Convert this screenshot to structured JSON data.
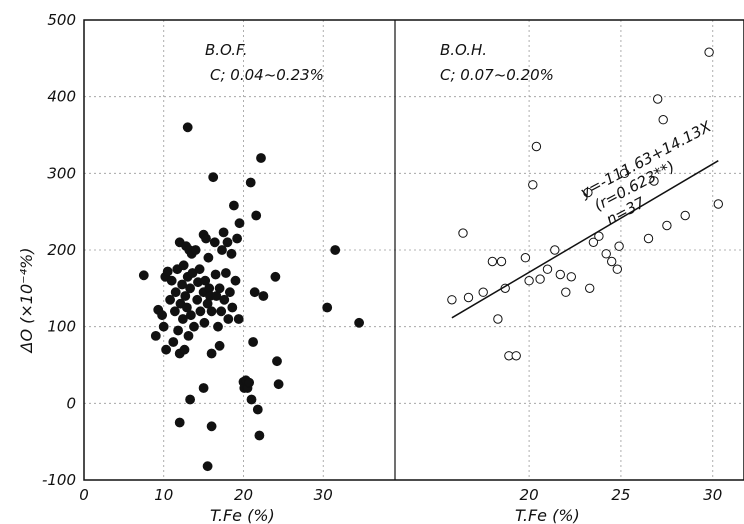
{
  "chart_data": {
    "type": "scatter",
    "ylabel": "ΔO (×10⁻⁴%)",
    "ylim": [
      -100,
      500
    ],
    "yticks": [
      "500",
      "400",
      "300",
      "200",
      "100",
      "0",
      "-100"
    ],
    "grid": true,
    "panels": [
      {
        "name": "B.O.F.",
        "condition": "C; 0.04~0.23%",
        "xlabel": "T.Fe (%)",
        "xlim": [
          0,
          39
        ],
        "xticks": [
          "0",
          "10",
          "20",
          "30"
        ],
        "marker": "filled",
        "points": [
          [
            7.5,
            167
          ],
          [
            9,
            88
          ],
          [
            9.3,
            122
          ],
          [
            9.8,
            115
          ],
          [
            10,
            100
          ],
          [
            10.2,
            165
          ],
          [
            10.3,
            70
          ],
          [
            10.5,
            172
          ],
          [
            10.8,
            135
          ],
          [
            11,
            160
          ],
          [
            11.2,
            80
          ],
          [
            11.4,
            120
          ],
          [
            11.5,
            145
          ],
          [
            11.7,
            175
          ],
          [
            11.8,
            95
          ],
          [
            12,
            210
          ],
          [
            12,
            65
          ],
          [
            12.1,
            130
          ],
          [
            12.3,
            155
          ],
          [
            12.4,
            110
          ],
          [
            12.5,
            180
          ],
          [
            12.6,
            70
          ],
          [
            12.7,
            140
          ],
          [
            12.8,
            205
          ],
          [
            12.9,
            125
          ],
          [
            13,
            360
          ],
          [
            13,
            165
          ],
          [
            13.1,
            88
          ],
          [
            13.2,
            200
          ],
          [
            13.3,
            150
          ],
          [
            13.4,
            115
          ],
          [
            13.5,
            195
          ],
          [
            13.6,
            170
          ],
          [
            13.8,
            100
          ],
          [
            14,
            200
          ],
          [
            14.2,
            135
          ],
          [
            14.3,
            158
          ],
          [
            14.5,
            175
          ],
          [
            14.6,
            120
          ],
          [
            15,
            220
          ],
          [
            15,
            145
          ],
          [
            15.1,
            105
          ],
          [
            15.2,
            160
          ],
          [
            15.3,
            215
          ],
          [
            15.5,
            130
          ],
          [
            15.6,
            190
          ],
          [
            15.7,
            150
          ],
          [
            15.8,
            140
          ],
          [
            16,
            120
          ],
          [
            16,
            65
          ],
          [
            16.2,
            295
          ],
          [
            16.4,
            210
          ],
          [
            16.5,
            168
          ],
          [
            16.6,
            140
          ],
          [
            16.8,
            100
          ],
          [
            17,
            150
          ],
          [
            17,
            75
          ],
          [
            17.2,
            120
          ],
          [
            17.3,
            200
          ],
          [
            17.5,
            223
          ],
          [
            17.6,
            135
          ],
          [
            17.8,
            170
          ],
          [
            18,
            210
          ],
          [
            18.1,
            110
          ],
          [
            18.3,
            145
          ],
          [
            18.5,
            195
          ],
          [
            18.6,
            125
          ],
          [
            18.8,
            258
          ],
          [
            19,
            160
          ],
          [
            19.2,
            215
          ],
          [
            19.4,
            110
          ],
          [
            19.5,
            235
          ],
          [
            20,
            28
          ],
          [
            20.1,
            20
          ],
          [
            20.3,
            30
          ],
          [
            20.5,
            20
          ],
          [
            20.7,
            27
          ],
          [
            20.9,
            288
          ],
          [
            21,
            5
          ],
          [
            21.2,
            80
          ],
          [
            21.4,
            145
          ],
          [
            21.6,
            245
          ],
          [
            21.8,
            -8
          ],
          [
            22,
            -42
          ],
          [
            22.2,
            320
          ],
          [
            22.5,
            140
          ],
          [
            24,
            165
          ],
          [
            24.2,
            55
          ],
          [
            24.4,
            25
          ],
          [
            12,
            -25
          ],
          [
            13.3,
            5
          ],
          [
            15,
            20
          ],
          [
            16,
            -30
          ],
          [
            15.5,
            -82
          ],
          [
            30.5,
            125
          ],
          [
            31.5,
            200
          ],
          [
            34.5,
            105
          ]
        ]
      },
      {
        "name": "B.O.H.",
        "condition": "C; 0.07~0.20%",
        "xlabel": "T.Fe (%)",
        "xlim": [
          12.7,
          31.7
        ],
        "xticks": [
          "20",
          "25",
          "30"
        ],
        "marker": "open",
        "regression": {
          "x": [
            15.8,
            30.3
          ],
          "label_eq": "y=-111.63+14.13X",
          "label_r": "(r=0.623**)",
          "label_n": "n=37"
        },
        "points": [
          [
            15.8,
            135
          ],
          [
            16.4,
            222
          ],
          [
            16.7,
            138
          ],
          [
            17.5,
            145
          ],
          [
            18.0,
            185
          ],
          [
            18.3,
            110
          ],
          [
            18.5,
            185
          ],
          [
            18.7,
            150
          ],
          [
            18.9,
            62
          ],
          [
            19.3,
            62
          ],
          [
            19.8,
            190
          ],
          [
            20.0,
            160
          ],
          [
            20.2,
            285
          ],
          [
            20.4,
            335
          ],
          [
            20.6,
            162
          ],
          [
            21.0,
            175
          ],
          [
            21.4,
            200
          ],
          [
            21.7,
            168
          ],
          [
            22.0,
            145
          ],
          [
            22.3,
            165
          ],
          [
            23.2,
            275
          ],
          [
            23.3,
            150
          ],
          [
            23.5,
            210
          ],
          [
            23.8,
            218
          ],
          [
            24.2,
            195
          ],
          [
            24.5,
            185
          ],
          [
            24.8,
            175
          ],
          [
            24.9,
            205
          ],
          [
            25.2,
            300
          ],
          [
            26.5,
            215
          ],
          [
            26.8,
            290
          ],
          [
            27,
            397
          ],
          [
            27.3,
            370
          ],
          [
            27.5,
            232
          ],
          [
            28.5,
            245
          ],
          [
            29.8,
            458
          ],
          [
            30.3,
            260
          ]
        ]
      }
    ]
  }
}
